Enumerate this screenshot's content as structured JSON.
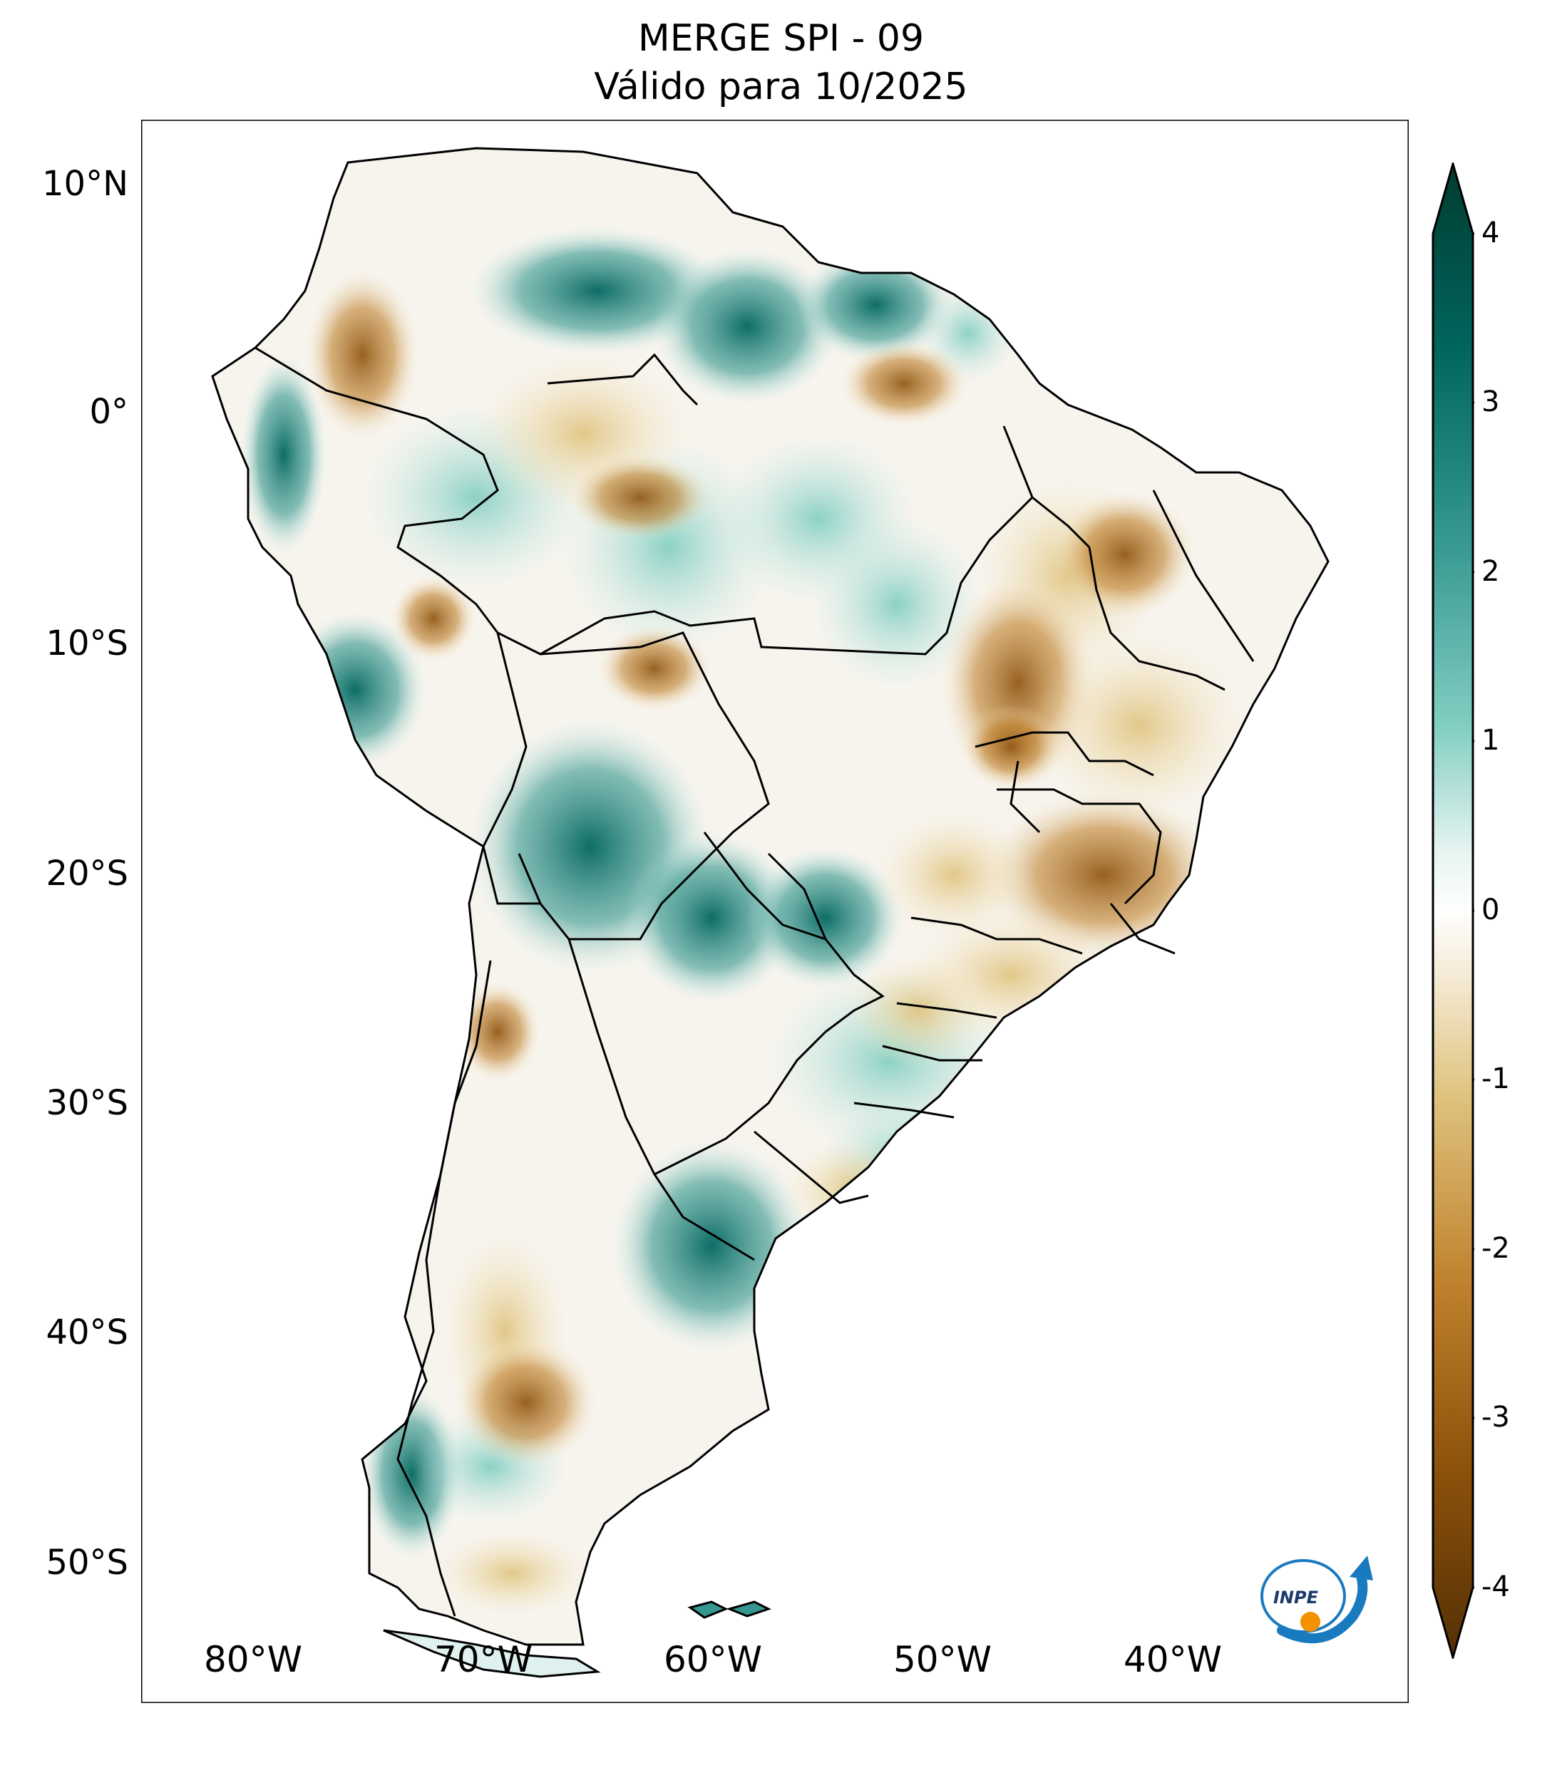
{
  "title": {
    "line1": "MERGE   SPI - 09",
    "line2": "Válido para 10/2025"
  },
  "map": {
    "region": "South America",
    "variable": "SPI - 09",
    "lat_ticks": [
      "10°N",
      "0°",
      "10°S",
      "20°S",
      "30°S",
      "40°S",
      "50°S"
    ],
    "lon_ticks": [
      "80°W",
      "70°W",
      "60°W",
      "50°W",
      "40°W"
    ],
    "extent": {
      "lon_min": -85,
      "lon_max": -30,
      "lat_min": -56,
      "lat_max": 13
    }
  },
  "colorbar": {
    "ticks": [
      "4",
      "3",
      "2",
      "1",
      "0",
      "-1",
      "-2",
      "-3",
      "-4"
    ],
    "range": [
      -4,
      4
    ],
    "colors": {
      "wet_extreme": "#003c30",
      "wet_strong": "#01665e",
      "wet": "#35978f",
      "wet_light": "#80cdc1",
      "wet_faint": "#c7eae5",
      "neutral": "#f5f5f5",
      "dry_faint": "#f6e8c3",
      "dry_light": "#dfc27d",
      "dry": "#bf812d",
      "dry_strong": "#8c510a",
      "dry_extreme": "#543005"
    }
  },
  "logo": {
    "text": "INPE"
  }
}
